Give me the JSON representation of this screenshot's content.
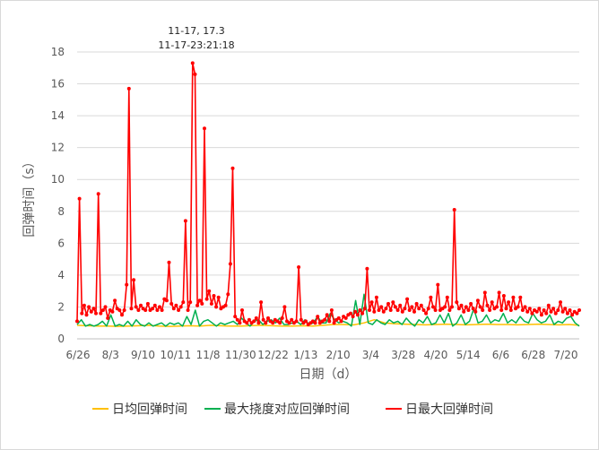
{
  "chart_data": {
    "type": "line",
    "title": "",
    "xlabel": "日期（d）",
    "ylabel": "回弹时间（s）",
    "ylim": [
      0,
      18
    ],
    "yticks": [
      "0",
      "2",
      "4",
      "6",
      "8",
      "10",
      "12",
      "14",
      "16",
      "18"
    ],
    "xticks": [
      "6/26",
      "8/3",
      "9/10",
      "10/11",
      "11/8",
      "11/30",
      "12/22",
      "1/13",
      "2/10",
      "3/4",
      "3/28",
      "4/20",
      "5/14",
      "6/6",
      "6/28",
      "7/20"
    ],
    "grid": "horizontal",
    "legend_position": "bottom",
    "annotation": {
      "line1": "11-17, 17.3",
      "line2": "11-17-23:21:18"
    },
    "series": [
      {
        "name": "日均回弹时间",
        "color": "#FFC000",
        "marker": false,
        "values": [
          0.85,
          0.82,
          0.8,
          0.8,
          0.78,
          0.8,
          0.82,
          0.85,
          0.8,
          0.78,
          0.8,
          0.82,
          0.8,
          0.85,
          0.82,
          0.8,
          0.8,
          0.83,
          0.85,
          0.82,
          0.8,
          0.8,
          0.82,
          0.8,
          0.85,
          0.9,
          0.9,
          0.88,
          1.0,
          1.2,
          1.0,
          0.95,
          0.92,
          0.9,
          0.88,
          0.9,
          0.92,
          0.9,
          0.88,
          0.9,
          0.92,
          0.9,
          0.9,
          0.88,
          0.9,
          0.92,
          0.9,
          0.88,
          0.9,
          0.85
        ]
      },
      {
        "name": "最大挠度对应回弹时间",
        "color": "#00B050",
        "marker": false,
        "values": [
          0.9,
          1.2,
          0.8,
          0.9,
          0.8,
          0.9,
          1.1,
          0.8,
          1.5,
          0.8,
          0.9,
          0.8,
          1.1,
          0.8,
          1.2,
          0.9,
          0.8,
          1.0,
          0.8,
          0.9,
          1.0,
          0.8,
          1.0,
          0.9,
          1.0,
          0.8,
          1.4,
          0.9,
          1.8,
          0.8,
          1.1,
          1.2,
          1.0,
          0.8,
          1.0,
          0.9,
          1.0,
          1.1,
          0.9,
          1.3,
          1.0,
          0.8,
          1.1,
          1.2,
          0.9,
          1.1,
          1.2,
          1.0,
          1.3,
          0.9,
          0.9,
          1.0,
          1.1,
          0.9,
          1.2,
          0.9,
          1.0,
          1.4,
          1.0,
          1.0,
          1.6,
          1.2,
          1.0,
          1.1,
          1.0,
          0.8,
          2.4,
          0.9,
          2.8,
          1.0,
          0.9,
          1.2,
          1.0,
          0.9,
          1.2,
          1.0,
          1.1,
          0.9,
          1.3,
          1.0,
          0.8,
          1.2,
          1.0,
          1.4,
          0.9,
          1.0,
          1.5,
          1.0,
          1.6,
          0.8,
          1.0,
          1.5,
          0.9,
          1.1,
          1.9,
          1.0,
          1.1,
          1.5,
          1.0,
          1.2,
          1.1,
          1.6,
          1.0,
          1.2,
          1.0,
          1.4,
          1.1,
          1.0,
          1.6,
          1.2,
          1.0,
          1.1,
          1.5,
          0.9,
          1.1,
          1.0,
          1.3,
          1.4,
          1.0,
          0.8
        ]
      },
      {
        "name": "日最大回弹时间",
        "color": "#FF0000",
        "marker": true,
        "points": [
          [
            0,
            1.1
          ],
          [
            1,
            8.8
          ],
          [
            2,
            1.6
          ],
          [
            3,
            2.1
          ],
          [
            4,
            1.5
          ],
          [
            5,
            2.0
          ],
          [
            6,
            1.7
          ],
          [
            7,
            1.9
          ],
          [
            8,
            1.6
          ],
          [
            9,
            9.1
          ],
          [
            10,
            1.6
          ],
          [
            11,
            1.8
          ],
          [
            12,
            2.0
          ],
          [
            13,
            1.3
          ],
          [
            14,
            1.8
          ],
          [
            15,
            1.7
          ],
          [
            16,
            2.4
          ],
          [
            17,
            1.9
          ],
          [
            18,
            1.8
          ],
          [
            19,
            1.5
          ],
          [
            20,
            1.8
          ],
          [
            21,
            3.4
          ],
          [
            22,
            15.7
          ],
          [
            23,
            1.9
          ],
          [
            24,
            3.7
          ],
          [
            25,
            2.0
          ],
          [
            26,
            1.8
          ],
          [
            27,
            2.1
          ],
          [
            28,
            1.9
          ],
          [
            29,
            1.8
          ],
          [
            30,
            2.2
          ],
          [
            31,
            1.8
          ],
          [
            32,
            1.9
          ],
          [
            33,
            2.1
          ],
          [
            34,
            1.8
          ],
          [
            35,
            2.0
          ],
          [
            36,
            1.8
          ],
          [
            37,
            2.5
          ],
          [
            38,
            2.4
          ],
          [
            39,
            4.8
          ],
          [
            40,
            2.2
          ],
          [
            41,
            1.9
          ],
          [
            42,
            2.1
          ],
          [
            43,
            1.8
          ],
          [
            44,
            2.0
          ],
          [
            45,
            2.3
          ],
          [
            46,
            7.4
          ],
          [
            47,
            1.8
          ],
          [
            48,
            2.3
          ],
          [
            49,
            17.3
          ],
          [
            50,
            16.6
          ],
          [
            51,
            2.1
          ],
          [
            52,
            2.4
          ],
          [
            53,
            2.2
          ],
          [
            54,
            13.2
          ],
          [
            55,
            2.5
          ],
          [
            56,
            3.0
          ],
          [
            57,
            2.2
          ],
          [
            58,
            2.7
          ],
          [
            59,
            2.0
          ],
          [
            60,
            2.6
          ],
          [
            61,
            1.9
          ],
          [
            62,
            2.0
          ],
          [
            63,
            2.1
          ],
          [
            64,
            2.8
          ],
          [
            65,
            4.7
          ],
          [
            66,
            10.7
          ],
          [
            67,
            1.4
          ],
          [
            68,
            1.2
          ],
          [
            69,
            1.0
          ],
          [
            70,
            1.8
          ],
          [
            71,
            1.1
          ],
          [
            72,
            1.0
          ],
          [
            73,
            1.2
          ],
          [
            74,
            1.0
          ],
          [
            75,
            1.1
          ],
          [
            76,
            1.3
          ],
          [
            77,
            1.0
          ],
          [
            78,
            2.3
          ],
          [
            79,
            1.2
          ],
          [
            80,
            1.0
          ],
          [
            81,
            1.3
          ],
          [
            82,
            1.1
          ],
          [
            83,
            1.0
          ],
          [
            84,
            1.2
          ],
          [
            85,
            1.1
          ],
          [
            86,
            1.0
          ],
          [
            87,
            1.3
          ],
          [
            88,
            2.0
          ],
          [
            89,
            1.1
          ],
          [
            90,
            1.0
          ],
          [
            91,
            1.2
          ],
          [
            92,
            1.0
          ],
          [
            93,
            1.1
          ],
          [
            94,
            4.5
          ],
          [
            95,
            1.2
          ],
          [
            96,
            1.0
          ],
          [
            97,
            1.1
          ],
          [
            98,
            0.9
          ],
          [
            99,
            1.0
          ],
          [
            100,
            1.1
          ],
          [
            101,
            1.0
          ],
          [
            102,
            1.4
          ],
          [
            103,
            1.0
          ],
          [
            104,
            1.1
          ],
          [
            105,
            1.2
          ],
          [
            106,
            1.5
          ],
          [
            107,
            1.1
          ],
          [
            108,
            1.8
          ],
          [
            109,
            1.0
          ],
          [
            110,
            1.2
          ],
          [
            111,
            1.3
          ],
          [
            112,
            1.1
          ],
          [
            113,
            1.4
          ],
          [
            114,
            1.3
          ],
          [
            115,
            1.5
          ],
          [
            116,
            1.6
          ],
          [
            117,
            1.4
          ],
          [
            118,
            1.7
          ],
          [
            119,
            1.5
          ],
          [
            120,
            1.8
          ],
          [
            121,
            1.6
          ],
          [
            122,
            1.9
          ],
          [
            123,
            4.4
          ],
          [
            124,
            1.8
          ],
          [
            125,
            2.3
          ],
          [
            126,
            1.7
          ],
          [
            127,
            2.6
          ],
          [
            128,
            1.8
          ],
          [
            129,
            2.0
          ],
          [
            130,
            1.7
          ],
          [
            131,
            1.9
          ],
          [
            132,
            2.2
          ],
          [
            133,
            1.8
          ],
          [
            134,
            2.3
          ],
          [
            135,
            2.0
          ],
          [
            136,
            1.8
          ],
          [
            137,
            2.1
          ],
          [
            138,
            1.7
          ],
          [
            139,
            1.9
          ],
          [
            140,
            2.5
          ],
          [
            141,
            1.8
          ],
          [
            142,
            2.0
          ],
          [
            143,
            1.7
          ],
          [
            144,
            2.2
          ],
          [
            145,
            1.9
          ],
          [
            146,
            2.1
          ],
          [
            147,
            1.8
          ],
          [
            148,
            1.6
          ],
          [
            149,
            1.9
          ],
          [
            150,
            2.6
          ],
          [
            151,
            2.0
          ],
          [
            152,
            1.8
          ],
          [
            153,
            3.4
          ],
          [
            154,
            1.8
          ],
          [
            155,
            1.9
          ],
          [
            156,
            2.0
          ],
          [
            157,
            2.6
          ],
          [
            158,
            1.8
          ],
          [
            159,
            2.0
          ],
          [
            160,
            8.1
          ],
          [
            161,
            2.3
          ],
          [
            162,
            1.9
          ],
          [
            163,
            2.1
          ],
          [
            164,
            1.7
          ],
          [
            165,
            2.0
          ],
          [
            166,
            1.8
          ],
          [
            167,
            2.2
          ],
          [
            168,
            1.9
          ],
          [
            169,
            1.7
          ],
          [
            170,
            2.4
          ],
          [
            171,
            2.0
          ],
          [
            172,
            1.8
          ],
          [
            173,
            2.9
          ],
          [
            174,
            2.1
          ],
          [
            175,
            1.8
          ],
          [
            176,
            2.3
          ],
          [
            177,
            1.9
          ],
          [
            178,
            2.0
          ],
          [
            179,
            2.9
          ],
          [
            180,
            1.8
          ],
          [
            181,
            2.7
          ],
          [
            182,
            1.9
          ],
          [
            183,
            2.3
          ],
          [
            184,
            1.8
          ],
          [
            185,
            2.6
          ],
          [
            186,
            1.9
          ],
          [
            187,
            2.0
          ],
          [
            188,
            2.6
          ],
          [
            189,
            1.8
          ],
          [
            190,
            2.0
          ],
          [
            191,
            1.7
          ],
          [
            192,
            1.9
          ],
          [
            193,
            1.6
          ],
          [
            194,
            1.8
          ],
          [
            195,
            1.7
          ],
          [
            196,
            1.9
          ],
          [
            197,
            1.5
          ],
          [
            198,
            1.8
          ],
          [
            199,
            1.6
          ],
          [
            200,
            2.1
          ],
          [
            201,
            1.7
          ],
          [
            202,
            1.9
          ],
          [
            203,
            1.6
          ],
          [
            204,
            1.8
          ],
          [
            205,
            2.3
          ],
          [
            206,
            1.7
          ],
          [
            207,
            1.9
          ],
          [
            208,
            1.6
          ],
          [
            209,
            1.8
          ],
          [
            210,
            1.5
          ],
          [
            211,
            1.7
          ],
          [
            212,
            1.6
          ],
          [
            213,
            1.8
          ]
        ]
      }
    ]
  }
}
